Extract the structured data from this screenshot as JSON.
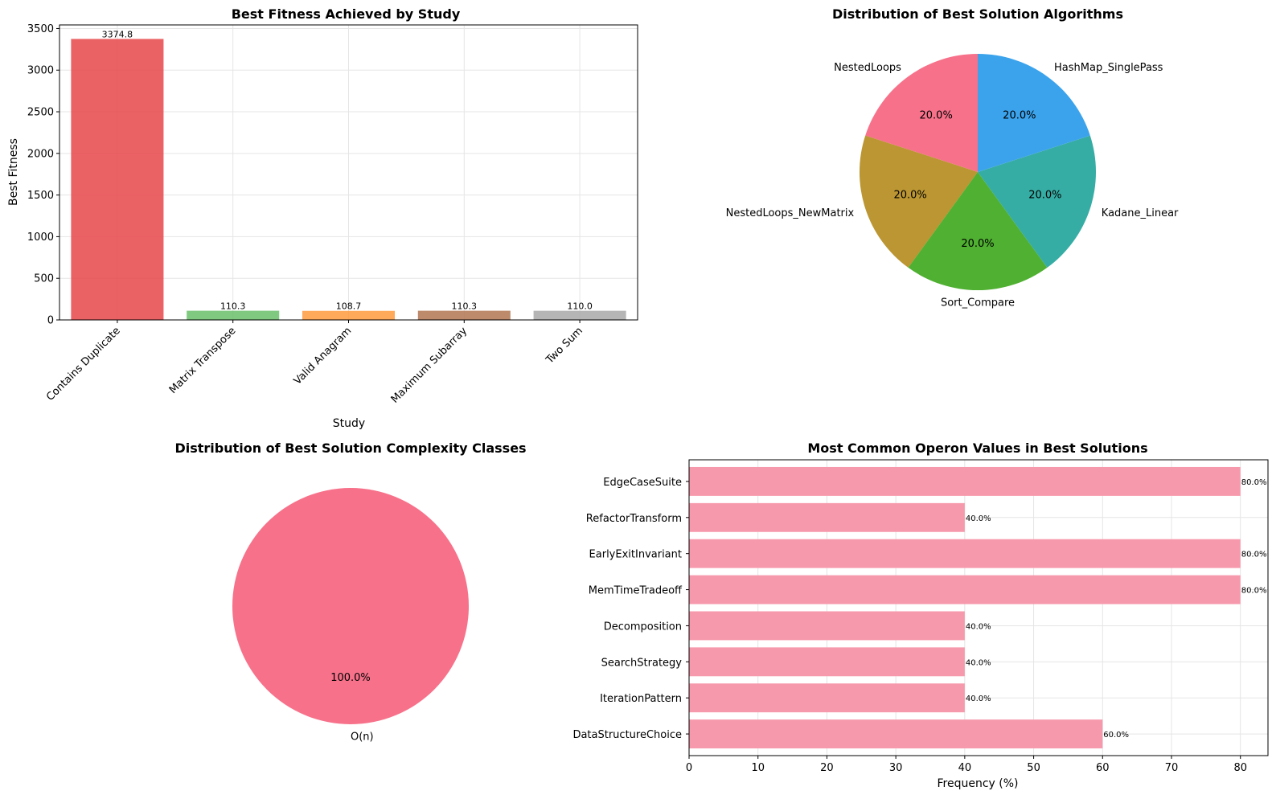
{
  "chart_data": [
    {
      "type": "bar",
      "title": "Best Fitness Achieved by Study",
      "xlabel": "Study",
      "ylabel": "Best Fitness",
      "categories": [
        "Contains Duplicate",
        "Matrix Transpose",
        "Valid Anagram",
        "Maximum Subarray",
        "Two Sum"
      ],
      "values": [
        3374.8,
        110.3,
        108.7,
        110.3,
        110.0
      ],
      "value_labels": [
        "3374.8",
        "110.3",
        "108.7",
        "110.3",
        "110.0"
      ],
      "colors": [
        "#e8474a",
        "#6abf6a",
        "#ff9a3d",
        "#b27552",
        "#a8a8a8"
      ],
      "ylim": [
        0,
        3543
      ],
      "yticks": [
        0,
        500,
        1000,
        1500,
        2000,
        2500,
        3000,
        3500
      ],
      "grid": true
    },
    {
      "type": "pie",
      "title": "Distribution of Best Solution Algorithms",
      "labels": [
        "NestedLoops",
        "NestedLoops_NewMatrix",
        "Sort_Compare",
        "Kadane_Linear",
        "HashMap_SinglePass"
      ],
      "values": [
        20.0,
        20.0,
        20.0,
        20.0,
        20.0
      ],
      "pct_labels": [
        "20.0%",
        "20.0%",
        "20.0%",
        "20.0%",
        "20.0%"
      ],
      "colors": [
        "#f7718a",
        "#bb9632",
        "#4fb031",
        "#36ada4",
        "#3ba3ec"
      ]
    },
    {
      "type": "pie",
      "title": "Distribution of Best Solution Complexity Classes",
      "labels": [
        "O(n)"
      ],
      "values": [
        100.0
      ],
      "pct_labels": [
        "100.0%"
      ],
      "colors": [
        "#f7718a"
      ]
    },
    {
      "type": "bar",
      "orientation": "horizontal",
      "title": "Most Common Operon Values in Best Solutions",
      "xlabel": "Frequency (%)",
      "categories": [
        "EdgeCaseSuite",
        "RefactorTransform",
        "EarlyExitInvariant",
        "MemTimeTradeoff",
        "Decomposition",
        "SearchStrategy",
        "IterationPattern",
        "DataStructureChoice"
      ],
      "values": [
        80.0,
        40.0,
        80.0,
        80.0,
        40.0,
        40.0,
        40.0,
        60.0
      ],
      "value_labels": [
        "80.0%",
        "40.0%",
        "80.0%",
        "80.0%",
        "40.0%",
        "40.0%",
        "40.0%",
        "60.0%"
      ],
      "color": "#f799ac",
      "xlim": [
        0,
        84
      ],
      "xticks": [
        0,
        10,
        20,
        30,
        40,
        50,
        60,
        70,
        80
      ],
      "grid": true
    }
  ]
}
